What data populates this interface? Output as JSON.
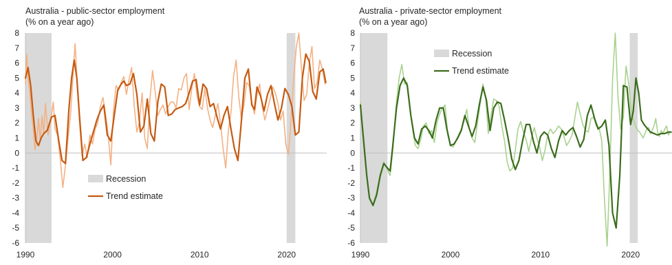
{
  "chart_data": [
    {
      "type": "line",
      "title": "Australia - public-sector employment",
      "subtitle": "(% on a year ago)",
      "xlim": [
        1990,
        2024.6
      ],
      "ylim": [
        -6,
        8
      ],
      "yticks": [
        "8",
        "7",
        "6",
        "5",
        "4",
        "3",
        "2",
        "1",
        "0",
        "-1",
        "-2",
        "-3",
        "-4",
        "-5",
        "-6"
      ],
      "xticks": [
        "1990",
        "2000",
        "2010",
        "2020"
      ],
      "legend_position": "lower-left",
      "recessions": [
        [
          1990.0,
          1993.0
        ],
        [
          2020.0,
          2021.0
        ]
      ],
      "legend": {
        "recession": "Recession",
        "trend": "Trend estimate"
      },
      "colors": {
        "trend": "#c55a11",
        "raw": "#f4b183",
        "recession": "#d9d9d9"
      },
      "series": [
        {
          "name": "Trend estimate",
          "role": "trend",
          "x": [
            1990.0,
            1990.3,
            1990.6,
            1990.9,
            1991.2,
            1991.5,
            1991.8,
            1992.1,
            1992.5,
            1993.0,
            1993.4,
            1993.8,
            1994.2,
            1994.6,
            1995.0,
            1995.3,
            1995.6,
            1995.9,
            1996.2,
            1996.6,
            1997.0,
            1997.4,
            1997.8,
            1998.2,
            1998.6,
            1999.0,
            1999.4,
            1999.8,
            2000.2,
            2000.6,
            2001.0,
            2001.3,
            2001.6,
            2002.0,
            2002.4,
            2002.8,
            2003.2,
            2003.6,
            2004.0,
            2004.4,
            2004.8,
            2005.2,
            2005.6,
            2006.0,
            2006.4,
            2006.8,
            2007.2,
            2007.6,
            2008.0,
            2008.4,
            2008.8,
            2009.2,
            2009.6,
            2010.0,
            2010.4,
            2010.8,
            2011.2,
            2011.6,
            2012.0,
            2012.4,
            2012.8,
            2013.2,
            2013.6,
            2014.0,
            2014.4,
            2014.8,
            2015.2,
            2015.6,
            2016.0,
            2016.3,
            2016.6,
            2017.0,
            2017.4,
            2017.8,
            2018.2,
            2018.6,
            2019.0,
            2019.4,
            2019.8,
            2020.2,
            2020.6,
            2021.0,
            2021.4,
            2021.8,
            2022.2,
            2022.6,
            2023.0,
            2023.4,
            2023.8,
            2024.2,
            2024.5
          ],
          "y": [
            5.0,
            5.7,
            4.5,
            2.5,
            0.8,
            0.5,
            1.0,
            1.3,
            1.5,
            2.4,
            2.5,
            0.9,
            -0.5,
            -0.7,
            3.0,
            5.0,
            6.2,
            5.0,
            2.5,
            -0.5,
            -0.3,
            0.6,
            1.4,
            2.2,
            2.8,
            3.2,
            1.2,
            0.8,
            2.5,
            4.2,
            4.6,
            4.8,
            4.5,
            4.6,
            5.3,
            3.9,
            1.4,
            1.8,
            3.6,
            1.3,
            0.8,
            3.4,
            4.6,
            4.4,
            2.5,
            2.6,
            2.9,
            3.0,
            3.1,
            3.3,
            4.0,
            4.8,
            4.9,
            3.2,
            4.6,
            4.3,
            3.1,
            3.3,
            2.4,
            1.6,
            2.5,
            3.1,
            1.6,
            0.3,
            -0.5,
            2.1,
            5.0,
            5.6,
            3.2,
            2.9,
            4.4,
            3.8,
            2.8,
            3.9,
            4.5,
            3.3,
            2.2,
            3.0,
            4.3,
            3.9,
            3.1,
            1.2,
            1.4,
            5.0,
            6.6,
            6.1,
            4.1,
            3.6,
            5.4,
            5.6,
            4.7
          ]
        },
        {
          "name": "",
          "role": "raw",
          "x": [
            1990.0,
            1990.15,
            1990.3,
            1990.5,
            1990.7,
            1990.9,
            1991.1,
            1991.3,
            1991.5,
            1991.7,
            1991.9,
            1992.1,
            1992.3,
            1992.6,
            1992.9,
            1993.2,
            1993.4,
            1993.7,
            1994.0,
            1994.3,
            1994.6,
            1994.9,
            1995.2,
            1995.5,
            1995.7,
            1996.0,
            1996.2,
            1996.5,
            1996.8,
            1997.1,
            1997.4,
            1997.7,
            1998.0,
            1998.3,
            1998.6,
            1998.9,
            1999.2,
            1999.5,
            1999.8,
            2000.1,
            2000.4,
            2000.7,
            2001.0,
            2001.3,
            2001.6,
            2001.9,
            2002.2,
            2002.5,
            2002.8,
            2003.1,
            2003.4,
            2003.7,
            2004.0,
            2004.3,
            2004.6,
            2004.9,
            2005.2,
            2005.5,
            2005.8,
            2006.1,
            2006.4,
            2006.7,
            2007.0,
            2007.3,
            2007.6,
            2007.9,
            2008.2,
            2008.5,
            2008.8,
            2009.1,
            2009.4,
            2009.7,
            2010.0,
            2010.3,
            2010.6,
            2010.9,
            2011.2,
            2011.5,
            2011.8,
            2012.1,
            2012.4,
            2012.7,
            2013.0,
            2013.3,
            2013.6,
            2013.9,
            2014.2,
            2014.5,
            2014.8,
            2015.1,
            2015.4,
            2015.7,
            2016.0,
            2016.3,
            2016.6,
            2016.9,
            2017.2,
            2017.5,
            2017.8,
            2018.1,
            2018.4,
            2018.7,
            2019.0,
            2019.3,
            2019.6,
            2019.9,
            2020.2,
            2020.5,
            2020.8,
            2021.1,
            2021.4,
            2021.7,
            2022.0,
            2022.3,
            2022.6,
            2022.9,
            2023.2,
            2023.5,
            2023.8,
            2024.1,
            2024.4
          ],
          "y": [
            4.6,
            6.6,
            5.0,
            4.1,
            2.6,
            1.6,
            0.2,
            0.9,
            2.3,
            0.8,
            2.5,
            1.3,
            3.3,
            1.2,
            2.2,
            3.4,
            1.6,
            1.2,
            -0.4,
            -2.3,
            -0.8,
            1.0,
            2.7,
            5.5,
            7.3,
            4.0,
            2.2,
            -0.2,
            0.6,
            -0.3,
            1.2,
            0.6,
            1.6,
            2.0,
            3.1,
            3.7,
            2.6,
            1.2,
            -0.8,
            2.8,
            4.5,
            4.2,
            4.7,
            5.1,
            3.9,
            4.9,
            5.7,
            3.1,
            1.4,
            2.1,
            4.0,
            1.0,
            0.3,
            3.6,
            5.5,
            4.1,
            2.5,
            2.9,
            3.2,
            2.6,
            3.1,
            3.4,
            3.4,
            3.0,
            4.3,
            4.2,
            5.0,
            5.3,
            2.9,
            4.3,
            5.3,
            3.8,
            3.1,
            2.9,
            4.3,
            3.0,
            2.2,
            1.7,
            2.5,
            3.3,
            2.0,
            0.3,
            -1.0,
            1.5,
            2.7,
            5.1,
            6.2,
            3.8,
            2.3,
            3.2,
            4.7,
            4.5,
            3.4,
            2.6,
            3.9,
            4.6,
            3.1,
            2.2,
            2.9,
            3.6,
            4.4,
            4.0,
            3.3,
            2.2,
            2.8,
            0.6,
            -0.1,
            2.2,
            4.9,
            7.0,
            8.0,
            5.6,
            3.5,
            3.9,
            6.0,
            7.1,
            4.3,
            4.7,
            6.2,
            5.6,
            4.6
          ]
        }
      ]
    },
    {
      "type": "line",
      "title": "Australia - private-sector employment",
      "subtitle": "(% on a year ago)",
      "xlim": [
        1990,
        2024.6
      ],
      "ylim": [
        -6,
        8
      ],
      "yticks": [
        "8",
        "7",
        "6",
        "5",
        "4",
        "3",
        "2",
        "1",
        "0",
        "-1",
        "-2",
        "-3",
        "-4",
        "-5",
        "-6"
      ],
      "xticks": [
        "1990",
        "2000",
        "2010",
        "2020"
      ],
      "legend_position": "top-left",
      "recessions": [
        [
          1990.0,
          1993.0
        ],
        [
          2019.9,
          2020.8
        ]
      ],
      "legend": {
        "recession": "Recession",
        "trend": "Trend estimate"
      },
      "colors": {
        "trend": "#3b6d1d",
        "raw": "#a9d18e",
        "recession": "#d9d9d9"
      },
      "series": [
        {
          "name": "Trend estimate",
          "role": "trend",
          "x": [
            1990.0,
            1990.3,
            1990.7,
            1991.0,
            1991.4,
            1991.8,
            1992.2,
            1992.6,
            1993.0,
            1993.3,
            1993.6,
            1994.0,
            1994.4,
            1994.8,
            1995.2,
            1995.6,
            1996.0,
            1996.4,
            1996.8,
            1997.2,
            1997.6,
            1998.0,
            1998.4,
            1998.8,
            1999.2,
            1999.6,
            2000.0,
            2000.4,
            2000.8,
            2001.2,
            2001.6,
            2002.0,
            2002.4,
            2002.8,
            2003.2,
            2003.6,
            2004.0,
            2004.4,
            2004.8,
            2005.2,
            2005.6,
            2006.0,
            2006.4,
            2006.8,
            2007.2,
            2007.6,
            2008.0,
            2008.4,
            2008.8,
            2009.2,
            2009.6,
            2010.0,
            2010.4,
            2010.8,
            2011.2,
            2011.6,
            2012.0,
            2012.4,
            2012.8,
            2013.2,
            2013.6,
            2014.0,
            2014.4,
            2014.8,
            2015.2,
            2015.6,
            2016.0,
            2016.4,
            2016.8,
            2017.2,
            2017.6,
            2018.0,
            2018.4,
            2018.8,
            2019.2,
            2019.6,
            2020.0,
            2020.3,
            2020.6,
            2020.9,
            2021.2,
            2021.5,
            2021.9,
            2022.2,
            2022.6,
            2023.0,
            2023.4,
            2023.8,
            2024.2,
            2024.5
          ],
          "y": [
            3.2,
            1.2,
            -1.5,
            -3.0,
            -3.5,
            -2.8,
            -1.5,
            -0.7,
            -1.0,
            -1.2,
            0.5,
            3.0,
            4.5,
            5.0,
            4.5,
            2.5,
            1.0,
            0.6,
            1.6,
            1.8,
            1.5,
            1.0,
            2.2,
            3.0,
            3.0,
            1.6,
            0.5,
            0.6,
            1.0,
            1.5,
            2.5,
            1.8,
            1.1,
            1.8,
            3.2,
            4.4,
            3.5,
            1.5,
            3.0,
            3.4,
            3.3,
            2.2,
            1.0,
            -0.4,
            -1.1,
            -0.5,
            0.8,
            1.9,
            1.9,
            0.8,
            0.0,
            1.1,
            1.4,
            1.2,
            0.3,
            -0.3,
            0.8,
            1.5,
            1.2,
            1.5,
            1.7,
            1.1,
            0.4,
            0.9,
            2.5,
            3.2,
            2.3,
            1.6,
            1.8,
            2.2,
            0.5,
            -4.0,
            -5.0,
            -1.5,
            4.5,
            4.4,
            1.9,
            2.8,
            5.0,
            4.0,
            2.2,
            1.9,
            1.6,
            1.4,
            1.3,
            1.2,
            1.3,
            1.3,
            1.4,
            1.4
          ]
        },
        {
          "name": "",
          "role": "raw",
          "x": [
            1990.0,
            1990.3,
            1990.7,
            1991.0,
            1991.4,
            1991.8,
            1992.2,
            1992.6,
            1993.0,
            1993.3,
            1993.6,
            1994.0,
            1994.3,
            1994.6,
            1994.9,
            1995.2,
            1995.5,
            1995.8,
            1996.1,
            1996.4,
            1996.7,
            1997.0,
            1997.3,
            1997.6,
            1997.9,
            1998.2,
            1998.5,
            1998.8,
            1999.1,
            1999.4,
            1999.7,
            2000.0,
            2000.3,
            2000.6,
            2000.9,
            2001.2,
            2001.5,
            2001.8,
            2002.1,
            2002.4,
            2002.7,
            2003.0,
            2003.3,
            2003.6,
            2003.9,
            2004.2,
            2004.5,
            2004.8,
            2005.1,
            2005.4,
            2005.7,
            2006.0,
            2006.3,
            2006.6,
            2006.9,
            2007.2,
            2007.5,
            2007.8,
            2008.1,
            2008.4,
            2008.7,
            2009.0,
            2009.3,
            2009.6,
            2009.9,
            2010.2,
            2010.5,
            2010.8,
            2011.1,
            2011.4,
            2011.7,
            2012.0,
            2012.3,
            2012.6,
            2012.9,
            2013.2,
            2013.5,
            2013.8,
            2014.1,
            2014.4,
            2014.7,
            2015.0,
            2015.3,
            2015.6,
            2015.9,
            2016.2,
            2016.5,
            2016.8,
            2017.1,
            2017.4,
            2017.7,
            2018.0,
            2018.3,
            2018.6,
            2018.9,
            2019.2,
            2019.5,
            2019.8,
            2020.0,
            2020.2,
            2020.4,
            2020.6,
            2020.8,
            2021.0,
            2021.2,
            2021.4,
            2021.6,
            2021.8,
            2022.0,
            2022.2,
            2022.4,
            2022.6,
            2022.8,
            2023.0,
            2023.2,
            2023.4,
            2023.6,
            2023.8,
            2024.0,
            2024.2,
            2024.4
          ],
          "y": [
            3.4,
            1.0,
            -1.6,
            -3.1,
            -3.4,
            -2.6,
            -1.4,
            -0.6,
            -1.1,
            -1.5,
            0.2,
            3.4,
            5.0,
            5.9,
            4.6,
            4.7,
            3.1,
            1.6,
            0.5,
            0.3,
            0.9,
            1.8,
            2.0,
            1.3,
            1.5,
            0.7,
            2.0,
            2.6,
            3.0,
            3.2,
            1.2,
            0.5,
            0.4,
            0.8,
            1.2,
            1.6,
            2.1,
            2.9,
            1.6,
            1.0,
            0.7,
            2.0,
            3.3,
            4.6,
            3.8,
            1.3,
            2.5,
            3.6,
            3.5,
            3.1,
            1.8,
            0.8,
            -0.6,
            -1.2,
            -1.0,
            0.2,
            1.6,
            2.1,
            1.4,
            0.9,
            0.1,
            1.0,
            1.7,
            1.0,
            0.4,
            -0.5,
            0.2,
            1.2,
            1.6,
            1.3,
            1.5,
            1.8,
            1.6,
            1.1,
            0.5,
            0.8,
            1.2,
            2.3,
            3.4,
            2.6,
            1.9,
            1.5,
            1.4,
            2.3,
            2.4,
            1.8,
            1.7,
            0.8,
            -3.1,
            -6.2,
            -1.2,
            4.9,
            8.0,
            3.8,
            1.6,
            2.4,
            5.8,
            4.6,
            3.3,
            2.4,
            2.1,
            1.7,
            1.5,
            1.4,
            1.2,
            1.0,
            1.3,
            1.6,
            1.7,
            1.3,
            1.5,
            1.8,
            2.3,
            1.4,
            1.1,
            1.5,
            1.3,
            1.6,
            1.8,
            1.2,
            1.4
          ]
        }
      ]
    }
  ]
}
